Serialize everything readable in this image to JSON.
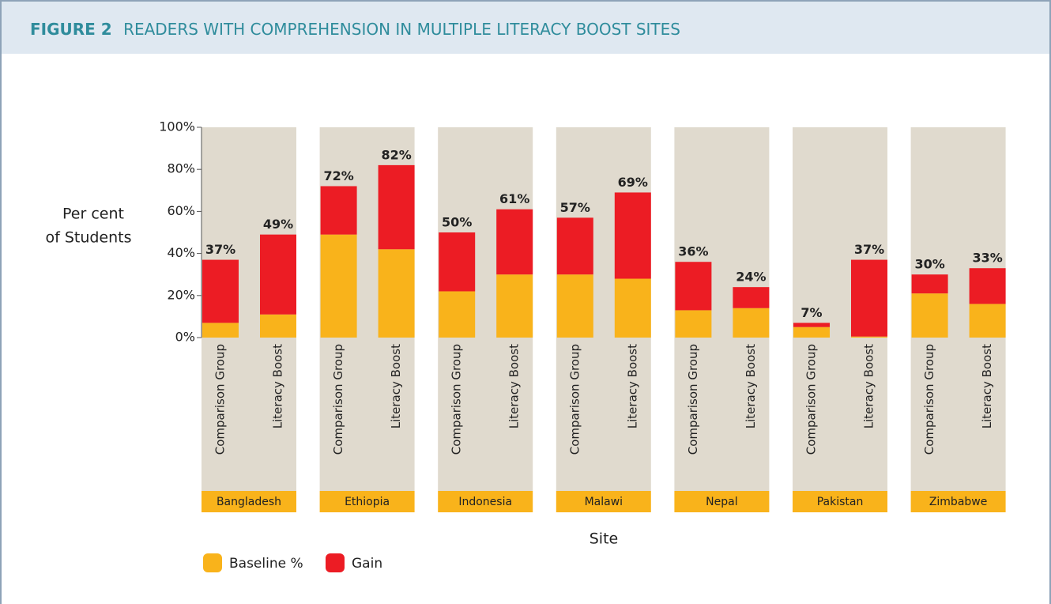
{
  "chart_data": {
    "type": "stacked-bar",
    "title_label": "FIGURE 2",
    "title": "READERS WITH COMPREHENSION IN MULTIPLE LITERACY BOOST SITES",
    "ylabel": [
      "Per cent",
      "of Students"
    ],
    "xlabel": "Site",
    "groups": [
      "Bangladesh",
      "Ethiopia",
      "Indonesia",
      "Malawi",
      "Nepal",
      "Pakistan",
      "Zimbabwe"
    ],
    "categories": [
      "Comparison Group",
      "Literacy Boost",
      "Comparison Group",
      "Literacy Boost",
      "Comparison Group",
      "Literacy Boost",
      "Comparison Group",
      "Literacy Boost",
      "Comparison Group",
      "Literacy Boost",
      "Comparison Group",
      "Literacy Boost",
      "Comparison Group",
      "Literacy Boost"
    ],
    "series": [
      {
        "name": "Baseline %",
        "color": "#f9b31b",
        "values": [
          7,
          11,
          49,
          42,
          22,
          30,
          30,
          28,
          13,
          14,
          5,
          0.5,
          21,
          16
        ]
      },
      {
        "name": "Gain",
        "color": "#ec1c24",
        "values": [
          30,
          38,
          23,
          40,
          28,
          31,
          27,
          41,
          23,
          10,
          2,
          36.5,
          9,
          17
        ]
      }
    ],
    "totals": [
      37,
      49,
      72,
      82,
      50,
      61,
      57,
      69,
      36,
      24,
      7,
      37,
      30,
      33
    ],
    "total_labels": [
      "37%",
      "49%",
      "72%",
      "82%",
      "50%",
      "61%",
      "57%",
      "69%",
      "36%",
      "24%",
      "7%",
      "37%",
      "30%",
      "33%"
    ],
    "ylim": [
      0,
      100
    ],
    "yticks": [
      {
        "value": 0,
        "label": "0%"
      },
      {
        "value": 20,
        "label": "20%"
      },
      {
        "value": 40,
        "label": "40%"
      },
      {
        "value": 60,
        "label": "60%"
      },
      {
        "value": 80,
        "label": "80%"
      },
      {
        "value": 100,
        "label": "100%"
      }
    ]
  }
}
